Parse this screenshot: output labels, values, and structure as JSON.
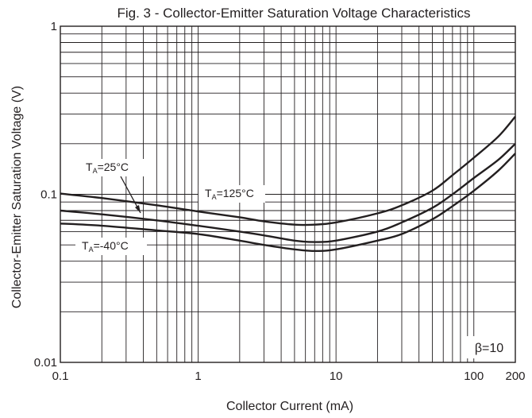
{
  "chart_data": {
    "type": "line",
    "title": "Fig. 3 - Collector-Emitter Saturation Voltage Characteristics",
    "xlabel": "Collector Current (mA)",
    "ylabel": "Collector-Emitter Saturation Voltage (V)",
    "x_scale": "log",
    "y_scale": "log",
    "xlim": [
      0.1,
      200
    ],
    "ylim": [
      0.01,
      1
    ],
    "x_ticks": [
      "0.1",
      "1",
      "10",
      "100",
      "200"
    ],
    "y_ticks": [
      "0.01",
      "0.1",
      "1"
    ],
    "grid": true,
    "annotation": "β=10",
    "series": [
      {
        "name": "125°C",
        "x": [
          0.1,
          0.2,
          0.5,
          1,
          2,
          3,
          5,
          7,
          10,
          20,
          30,
          50,
          70,
          100,
          150,
          200
        ],
        "y": [
          0.101,
          0.095,
          0.086,
          0.079,
          0.073,
          0.069,
          0.066,
          0.066,
          0.068,
          0.077,
          0.086,
          0.105,
          0.13,
          0.165,
          0.22,
          0.29
        ]
      },
      {
        "name": "25°C",
        "x": [
          0.1,
          0.2,
          0.5,
          1,
          2,
          3,
          5,
          7,
          10,
          20,
          30,
          50,
          70,
          100,
          150,
          200
        ],
        "y": [
          0.08,
          0.076,
          0.07,
          0.065,
          0.06,
          0.057,
          0.053,
          0.052,
          0.053,
          0.06,
          0.068,
          0.083,
          0.1,
          0.125,
          0.16,
          0.2
        ]
      },
      {
        "name": "-40°C",
        "x": [
          0.1,
          0.2,
          0.5,
          1,
          2,
          3,
          5,
          7,
          10,
          20,
          30,
          50,
          70,
          100,
          150,
          200
        ],
        "y": [
          0.067,
          0.065,
          0.061,
          0.058,
          0.053,
          0.05,
          0.047,
          0.046,
          0.047,
          0.053,
          0.058,
          0.071,
          0.085,
          0.105,
          0.138,
          0.175
        ]
      }
    ],
    "series_labels": [
      {
        "prefix": "T",
        "sub": "A",
        "text": "=25°C"
      },
      {
        "prefix": "T",
        "sub": "A",
        "text": "=125°C"
      },
      {
        "prefix": "T",
        "sub": "A",
        "text": "=-40°C"
      }
    ]
  }
}
